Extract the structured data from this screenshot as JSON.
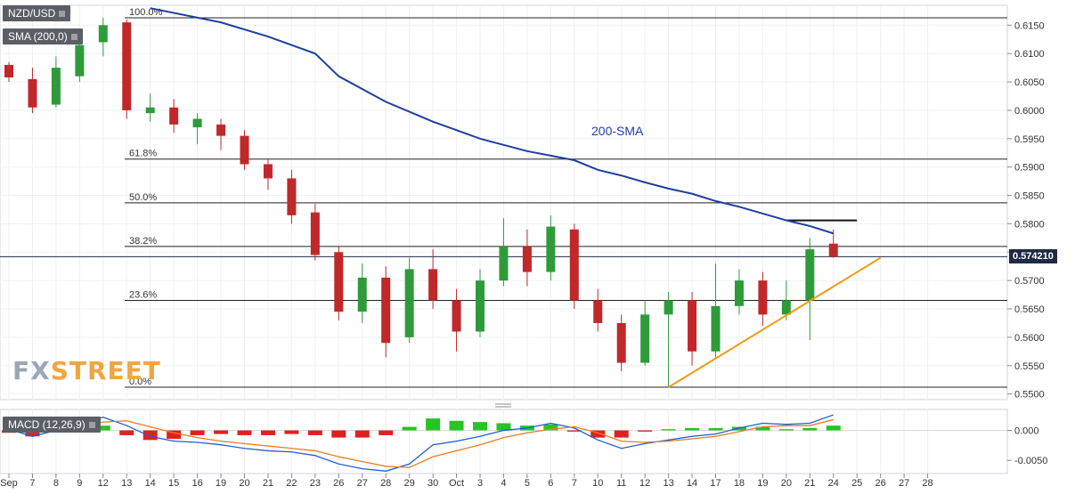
{
  "header": {
    "symbol": "NZD/USD",
    "sma_label": "SMA (200,0)",
    "macd_label": "MACD (12,26,9)",
    "current_price": "0.574210",
    "sma_annotation": "200-SMA",
    "watermark_fx": "FX",
    "watermark_street": "STREET"
  },
  "colors": {
    "up": "#2e9b3a",
    "down": "#c0282a",
    "sma": "#1f3f9f",
    "trendline": "#f29b14",
    "macd_line": "#1f5fd0",
    "signal_line": "#f07a1e",
    "hist_up": "#27c426",
    "hist_down": "#e02020",
    "fib_line": "#222222",
    "resistance": "#111111",
    "watermark_fx": "#9aa7b5",
    "watermark_street": "#f0a640"
  },
  "chart_data": [
    {
      "type": "candlestick",
      "title": "NZD/USD",
      "ylim": [
        0.549,
        0.6185
      ],
      "y_ticks": [
        "0.5500",
        "0.5550",
        "0.5600",
        "0.5650",
        "0.5700",
        "0.5750",
        "0.5800",
        "0.5850",
        "0.5900",
        "0.5950",
        "0.6000",
        "0.6050",
        "0.6100",
        "0.6150"
      ],
      "x_tick_labels": [
        "Sep",
        "7",
        "8",
        "9",
        "12",
        "13",
        "14",
        "15",
        "16",
        "19",
        "20",
        "21",
        "22",
        "23",
        "26",
        "27",
        "28",
        "29",
        "30",
        "Oct",
        "3",
        "4",
        "5",
        "6",
        "7",
        "10",
        "11",
        "12",
        "13",
        "14",
        "17",
        "18",
        "19",
        "20",
        "21",
        "24",
        "25",
        "26",
        "27",
        "28"
      ],
      "fibonacci": [
        {
          "label": "100.0%",
          "value": 0.6163
        },
        {
          "label": "61.8%",
          "value": 0.5914
        },
        {
          "label": "50.0%",
          "value": 0.5837
        },
        {
          "label": "38.2%",
          "value": 0.576
        },
        {
          "label": "23.6%",
          "value": 0.5665
        },
        {
          "label": "0.0%",
          "value": 0.5512
        }
      ],
      "resistance": {
        "from": "20",
        "to": "25",
        "value": 0.5806
      },
      "trendline": {
        "from": {
          "x": "13",
          "y": 0.5512
        },
        "to": {
          "x": "26",
          "y": 0.574
        }
      },
      "series": [
        {
          "name": "SMA (200,0)",
          "points": [
            {
              "x": "14",
              "y": 0.618
            },
            {
              "x": "19",
              "y": 0.6155
            },
            {
              "x": "21",
              "y": 0.613
            },
            {
              "x": "23",
              "y": 0.61
            },
            {
              "x": "26",
              "y": 0.606
            },
            {
              "x": "28",
              "y": 0.6015
            },
            {
              "x": "30",
              "y": 0.598
            },
            {
              "x": "Oct",
              "y": 0.5965
            },
            {
              "x": "3",
              "y": 0.595
            },
            {
              "x": "5",
              "y": 0.5928
            },
            {
              "x": "6",
              "y": 0.592
            },
            {
              "x": "7",
              "y": 0.5912
            },
            {
              "x": "10",
              "y": 0.5895
            },
            {
              "x": "11",
              "y": 0.5885
            },
            {
              "x": "12",
              "y": 0.5873
            },
            {
              "x": "13",
              "y": 0.5862
            },
            {
              "x": "14",
              "y": 0.5853
            },
            {
              "x": "17",
              "y": 0.584
            },
            {
              "x": "18",
              "y": 0.583
            },
            {
              "x": "19",
              "y": 0.5818
            },
            {
              "x": "20",
              "y": 0.5806
            },
            {
              "x": "21",
              "y": 0.5796
            },
            {
              "x": "24",
              "y": 0.5783
            }
          ]
        }
      ],
      "candles": [
        {
          "x": "Sep",
          "o": 0.608,
          "h": 0.6085,
          "l": 0.605,
          "c": 0.6058
        },
        {
          "x": "7",
          "o": 0.6055,
          "h": 0.6075,
          "l": 0.5995,
          "c": 0.6005
        },
        {
          "x": "8",
          "o": 0.601,
          "h": 0.6095,
          "l": 0.6005,
          "c": 0.6075
        },
        {
          "x": "9",
          "o": 0.606,
          "h": 0.613,
          "l": 0.605,
          "c": 0.6115
        },
        {
          "x": "12",
          "o": 0.612,
          "h": 0.6163,
          "l": 0.6095,
          "c": 0.615
        },
        {
          "x": "13",
          "o": 0.6155,
          "h": 0.616,
          "l": 0.5985,
          "c": 0.6
        },
        {
          "x": "14",
          "o": 0.5995,
          "h": 0.603,
          "l": 0.598,
          "c": 0.6005
        },
        {
          "x": "15",
          "o": 0.6005,
          "h": 0.602,
          "l": 0.596,
          "c": 0.5975
        },
        {
          "x": "16",
          "o": 0.597,
          "h": 0.5995,
          "l": 0.594,
          "c": 0.5985
        },
        {
          "x": "19",
          "o": 0.5975,
          "h": 0.5985,
          "l": 0.593,
          "c": 0.5955
        },
        {
          "x": "20",
          "o": 0.5955,
          "h": 0.5965,
          "l": 0.5895,
          "c": 0.5905
        },
        {
          "x": "21",
          "o": 0.5905,
          "h": 0.5915,
          "l": 0.586,
          "c": 0.588
        },
        {
          "x": "22",
          "o": 0.588,
          "h": 0.5895,
          "l": 0.58,
          "c": 0.5815
        },
        {
          "x": "23",
          "o": 0.582,
          "h": 0.5835,
          "l": 0.5735,
          "c": 0.5745
        },
        {
          "x": "26",
          "o": 0.575,
          "h": 0.576,
          "l": 0.563,
          "c": 0.5645
        },
        {
          "x": "27",
          "o": 0.5645,
          "h": 0.573,
          "l": 0.5625,
          "c": 0.5705
        },
        {
          "x": "28",
          "o": 0.5705,
          "h": 0.5725,
          "l": 0.5565,
          "c": 0.559
        },
        {
          "x": "29",
          "o": 0.56,
          "h": 0.574,
          "l": 0.559,
          "c": 0.572
        },
        {
          "x": "30",
          "o": 0.572,
          "h": 0.5755,
          "l": 0.565,
          "c": 0.5665
        },
        {
          "x": "Oct",
          "o": 0.5665,
          "h": 0.5685,
          "l": 0.5575,
          "c": 0.561
        },
        {
          "x": "3",
          "o": 0.561,
          "h": 0.572,
          "l": 0.56,
          "c": 0.57
        },
        {
          "x": "4",
          "o": 0.57,
          "h": 0.581,
          "l": 0.569,
          "c": 0.576
        },
        {
          "x": "5",
          "o": 0.576,
          "h": 0.579,
          "l": 0.569,
          "c": 0.5715
        },
        {
          "x": "6",
          "o": 0.5715,
          "h": 0.5815,
          "l": 0.57,
          "c": 0.5795
        },
        {
          "x": "7",
          "o": 0.579,
          "h": 0.58,
          "l": 0.565,
          "c": 0.5665
        },
        {
          "x": "10",
          "o": 0.5665,
          "h": 0.5685,
          "l": 0.561,
          "c": 0.5625
        },
        {
          "x": "11",
          "o": 0.5625,
          "h": 0.564,
          "l": 0.554,
          "c": 0.5555
        },
        {
          "x": "12",
          "o": 0.5555,
          "h": 0.5665,
          "l": 0.555,
          "c": 0.564
        },
        {
          "x": "13",
          "o": 0.564,
          "h": 0.568,
          "l": 0.5512,
          "c": 0.5665
        },
        {
          "x": "14",
          "o": 0.5665,
          "h": 0.568,
          "l": 0.555,
          "c": 0.5575
        },
        {
          "x": "17",
          "o": 0.5575,
          "h": 0.573,
          "l": 0.5565,
          "c": 0.5655
        },
        {
          "x": "18",
          "o": 0.5655,
          "h": 0.572,
          "l": 0.564,
          "c": 0.57
        },
        {
          "x": "19",
          "o": 0.57,
          "h": 0.5715,
          "l": 0.562,
          "c": 0.564
        },
        {
          "x": "20",
          "o": 0.564,
          "h": 0.57,
          "l": 0.563,
          "c": 0.5665
        },
        {
          "x": "21",
          "o": 0.5665,
          "h": 0.5775,
          "l": 0.5595,
          "c": 0.5755
        },
        {
          "x": "24",
          "o": 0.5765,
          "h": 0.579,
          "l": 0.574,
          "c": 0.5742
        }
      ]
    },
    {
      "type": "macd",
      "title": "MACD (12,26,9)",
      "ylim": [
        -0.0072,
        0.0035
      ],
      "y_ticks": [
        "0.000",
        "-0.0050"
      ],
      "series": [
        {
          "name": "MACD",
          "points": [
            {
              "x": "Sep",
              "y": 0.0002
            },
            {
              "x": "7",
              "y": -0.001
            },
            {
              "x": "8",
              "y": 0.0
            },
            {
              "x": "9",
              "y": 0.0012
            },
            {
              "x": "12",
              "y": 0.0022
            },
            {
              "x": "13",
              "y": 0.0008
            },
            {
              "x": "14",
              "y": -0.001
            },
            {
              "x": "15",
              "y": -0.0018
            },
            {
              "x": "16",
              "y": -0.002
            },
            {
              "x": "19",
              "y": -0.0024
            },
            {
              "x": "20",
              "y": -0.003
            },
            {
              "x": "21",
              "y": -0.0034
            },
            {
              "x": "22",
              "y": -0.0036
            },
            {
              "x": "23",
              "y": -0.0042
            },
            {
              "x": "26",
              "y": -0.0056
            },
            {
              "x": "27",
              "y": -0.0064
            },
            {
              "x": "28",
              "y": -0.0068
            },
            {
              "x": "29",
              "y": -0.0056
            },
            {
              "x": "30",
              "y": -0.0024
            },
            {
              "x": "Oct",
              "y": -0.0018
            },
            {
              "x": "3",
              "y": -0.001
            },
            {
              "x": "4",
              "y": 0.0
            },
            {
              "x": "5",
              "y": 0.0004
            },
            {
              "x": "6",
              "y": 0.0012
            },
            {
              "x": "7",
              "y": 0.0004
            },
            {
              "x": "10",
              "y": -0.0016
            },
            {
              "x": "11",
              "y": -0.003
            },
            {
              "x": "12",
              "y": -0.0022
            },
            {
              "x": "13",
              "y": -0.0016
            },
            {
              "x": "14",
              "y": -0.001
            },
            {
              "x": "17",
              "y": -0.0006
            },
            {
              "x": "18",
              "y": 0.0004
            },
            {
              "x": "19",
              "y": 0.0012
            },
            {
              "x": "20",
              "y": 0.001
            },
            {
              "x": "21",
              "y": 0.0012
            },
            {
              "x": "24",
              "y": 0.0026
            }
          ]
        },
        {
          "name": "Signal",
          "points": [
            {
              "x": "Sep",
              "y": 0.0006
            },
            {
              "x": "7",
              "y": 0.0
            },
            {
              "x": "8",
              "y": -0.0002
            },
            {
              "x": "9",
              "y": 0.0004
            },
            {
              "x": "12",
              "y": 0.0014
            },
            {
              "x": "13",
              "y": 0.0016
            },
            {
              "x": "14",
              "y": 0.0006
            },
            {
              "x": "15",
              "y": -0.0004
            },
            {
              "x": "16",
              "y": -0.0012
            },
            {
              "x": "19",
              "y": -0.0018
            },
            {
              "x": "20",
              "y": -0.0022
            },
            {
              "x": "21",
              "y": -0.0026
            },
            {
              "x": "22",
              "y": -0.003
            },
            {
              "x": "23",
              "y": -0.0034
            },
            {
              "x": "26",
              "y": -0.0044
            },
            {
              "x": "27",
              "y": -0.0052
            },
            {
              "x": "28",
              "y": -0.006
            },
            {
              "x": "29",
              "y": -0.0062
            },
            {
              "x": "30",
              "y": -0.0044
            },
            {
              "x": "Oct",
              "y": -0.0034
            },
            {
              "x": "3",
              "y": -0.0024
            },
            {
              "x": "4",
              "y": -0.0012
            },
            {
              "x": "5",
              "y": -0.0004
            },
            {
              "x": "6",
              "y": 0.0002
            },
            {
              "x": "7",
              "y": 0.0006
            },
            {
              "x": "10",
              "y": -0.0004
            },
            {
              "x": "11",
              "y": -0.0018
            },
            {
              "x": "12",
              "y": -0.002
            },
            {
              "x": "13",
              "y": -0.0018
            },
            {
              "x": "14",
              "y": -0.0014
            },
            {
              "x": "17",
              "y": -0.001
            },
            {
              "x": "18",
              "y": -0.0002
            },
            {
              "x": "19",
              "y": 0.0006
            },
            {
              "x": "20",
              "y": 0.0008
            },
            {
              "x": "21",
              "y": 0.0008
            },
            {
              "x": "24",
              "y": 0.0018
            }
          ]
        }
      ],
      "histogram": [
        {
          "x": "Sep",
          "y": -0.0004
        },
        {
          "x": "7",
          "y": -0.001
        },
        {
          "x": "8",
          "y": 0.0002
        },
        {
          "x": "9",
          "y": 0.0008
        },
        {
          "x": "12",
          "y": 0.0008
        },
        {
          "x": "13",
          "y": -0.0008
        },
        {
          "x": "14",
          "y": -0.0016
        },
        {
          "x": "15",
          "y": -0.0014
        },
        {
          "x": "16",
          "y": -0.0008
        },
        {
          "x": "19",
          "y": -0.0006
        },
        {
          "x": "20",
          "y": -0.0008
        },
        {
          "x": "21",
          "y": -0.0008
        },
        {
          "x": "22",
          "y": -0.0006
        },
        {
          "x": "23",
          "y": -0.0008
        },
        {
          "x": "26",
          "y": -0.0012
        },
        {
          "x": "27",
          "y": -0.0012
        },
        {
          "x": "28",
          "y": -0.0008
        },
        {
          "x": "29",
          "y": 0.0006
        },
        {
          "x": "30",
          "y": 0.002
        },
        {
          "x": "Oct",
          "y": 0.0016
        },
        {
          "x": "3",
          "y": 0.0014
        },
        {
          "x": "4",
          "y": 0.0012
        },
        {
          "x": "5",
          "y": 0.0008
        },
        {
          "x": "6",
          "y": 0.001
        },
        {
          "x": "7",
          "y": -0.0002
        },
        {
          "x": "10",
          "y": -0.0012
        },
        {
          "x": "11",
          "y": -0.0012
        },
        {
          "x": "12",
          "y": -0.0002
        },
        {
          "x": "13",
          "y": 0.0002
        },
        {
          "x": "14",
          "y": 0.0004
        },
        {
          "x": "17",
          "y": 0.0004
        },
        {
          "x": "18",
          "y": 0.0006
        },
        {
          "x": "19",
          "y": 0.0006
        },
        {
          "x": "20",
          "y": 0.0002
        },
        {
          "x": "21",
          "y": 0.0004
        },
        {
          "x": "24",
          "y": 0.0008
        }
      ]
    }
  ]
}
